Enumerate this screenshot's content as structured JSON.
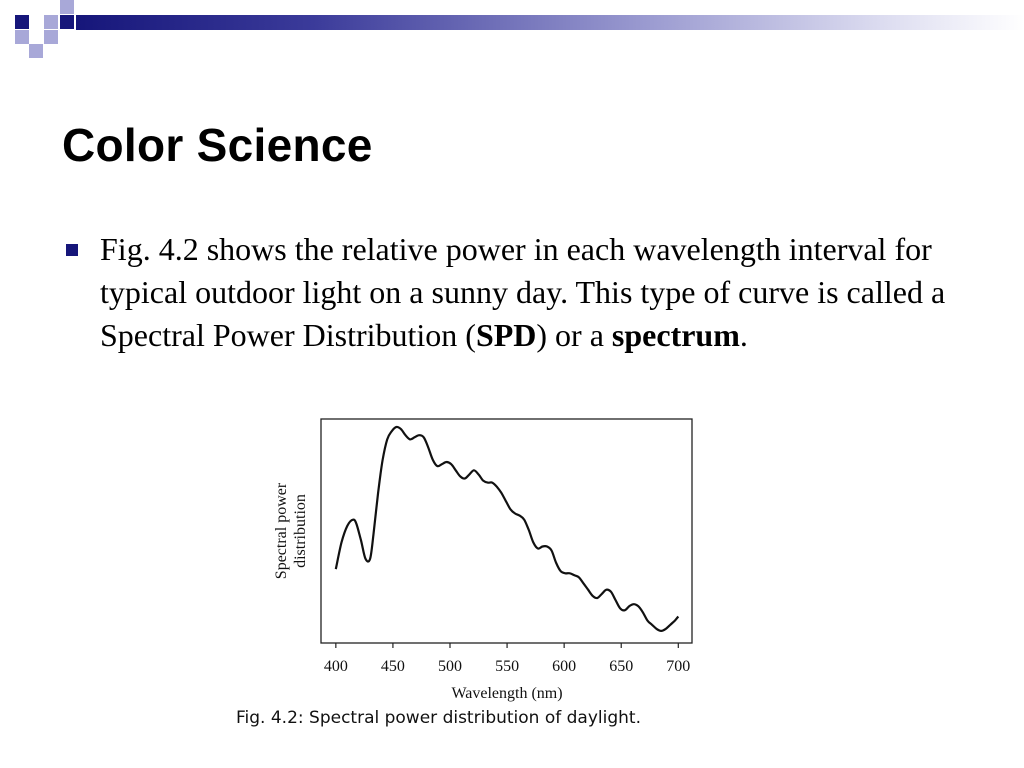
{
  "slide": {
    "title": "Color Science",
    "bullet": {
      "before_spd": "Fig. 4.2 shows the relative power in each wavelength interval for typical outdoor light on a sunny day. This type of curve is called a Spectral Power Distribution (",
      "spd": "SPD",
      "middle": ") or a ",
      "spectrum": "spectrum",
      "end": "."
    },
    "caption": "Fig. 4.2:  Spectral power distribution of daylight."
  },
  "colors": {
    "accent": "#16167a",
    "deco_light": "#a8a8d8"
  },
  "chart_data": {
    "type": "line",
    "xlabel": "Wavelength (nm)",
    "ylabel_lines": [
      "Spectral power",
      "distribution"
    ],
    "xlim": [
      387,
      712
    ],
    "ylim": [
      0,
      1
    ],
    "x_ticks": [
      400,
      450,
      500,
      550,
      600,
      650,
      700
    ],
    "grid": false,
    "y_tick_labels": false,
    "series": [
      {
        "x": [
          400,
          405,
          410,
          415,
          418,
          422,
          426,
          430,
          433,
          437,
          441,
          445,
          449,
          453,
          457,
          461,
          465,
          469,
          473,
          477,
          481,
          485,
          489,
          493,
          497,
          501,
          505,
          509,
          513,
          517,
          521,
          525,
          529,
          533,
          537,
          541,
          545,
          549,
          553,
          557,
          561,
          565,
          569,
          573,
          577,
          581,
          585,
          589,
          593,
          597,
          601,
          605,
          609,
          613,
          617,
          621,
          625,
          629,
          633,
          637,
          641,
          645,
          649,
          653,
          657,
          661,
          665,
          669,
          673,
          677,
          681,
          685,
          689,
          693,
          697,
          700
        ],
        "y": [
          0.31,
          0.44,
          0.52,
          0.55,
          0.53,
          0.45,
          0.36,
          0.36,
          0.48,
          0.68,
          0.84,
          0.94,
          0.98,
          1.0,
          0.99,
          0.96,
          0.94,
          0.95,
          0.96,
          0.95,
          0.9,
          0.84,
          0.81,
          0.82,
          0.83,
          0.82,
          0.79,
          0.76,
          0.75,
          0.77,
          0.79,
          0.77,
          0.74,
          0.73,
          0.73,
          0.71,
          0.68,
          0.64,
          0.6,
          0.58,
          0.57,
          0.55,
          0.5,
          0.44,
          0.41,
          0.42,
          0.42,
          0.4,
          0.34,
          0.3,
          0.29,
          0.29,
          0.28,
          0.27,
          0.24,
          0.21,
          0.18,
          0.17,
          0.19,
          0.21,
          0.2,
          0.16,
          0.12,
          0.11,
          0.13,
          0.14,
          0.13,
          0.1,
          0.06,
          0.04,
          0.02,
          0.01,
          0.02,
          0.04,
          0.06,
          0.08
        ]
      }
    ]
  }
}
